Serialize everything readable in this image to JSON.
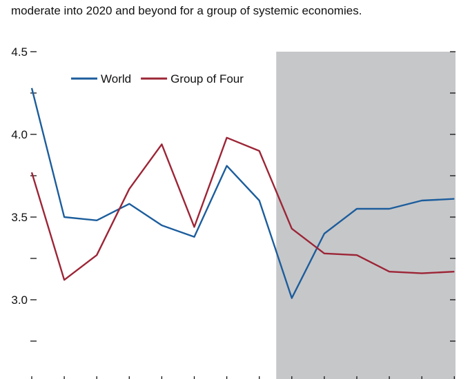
{
  "caption": "moderate into 2020 and beyond for a group of systemic economies.",
  "chart_data": {
    "type": "line",
    "title": "",
    "xlabel": "",
    "ylabel": "",
    "x": [
      1,
      2,
      3,
      4,
      5,
      6,
      7,
      8,
      9,
      10,
      11,
      12,
      13,
      14
    ],
    "ylim": [
      2.5,
      4.5
    ],
    "yticks": [
      "4.5",
      "4.0",
      "3.5",
      "3.0"
    ],
    "grid": false,
    "legend_position": "top-left",
    "shaded_region_start_index": 9,
    "shade_color": "#c6c7c9",
    "series": [
      {
        "name": "World",
        "color": "#1c5d9c",
        "values": [
          4.28,
          3.5,
          3.48,
          3.58,
          3.45,
          3.38,
          3.81,
          3.6,
          3.01,
          3.4,
          3.55,
          3.55,
          3.6,
          3.61
        ]
      },
      {
        "name": "Group of Four",
        "color": "#9c2536",
        "values": [
          3.77,
          3.12,
          3.27,
          3.67,
          3.94,
          3.44,
          3.98,
          3.9,
          3.43,
          3.28,
          3.27,
          3.17,
          3.16,
          3.17
        ]
      }
    ]
  }
}
